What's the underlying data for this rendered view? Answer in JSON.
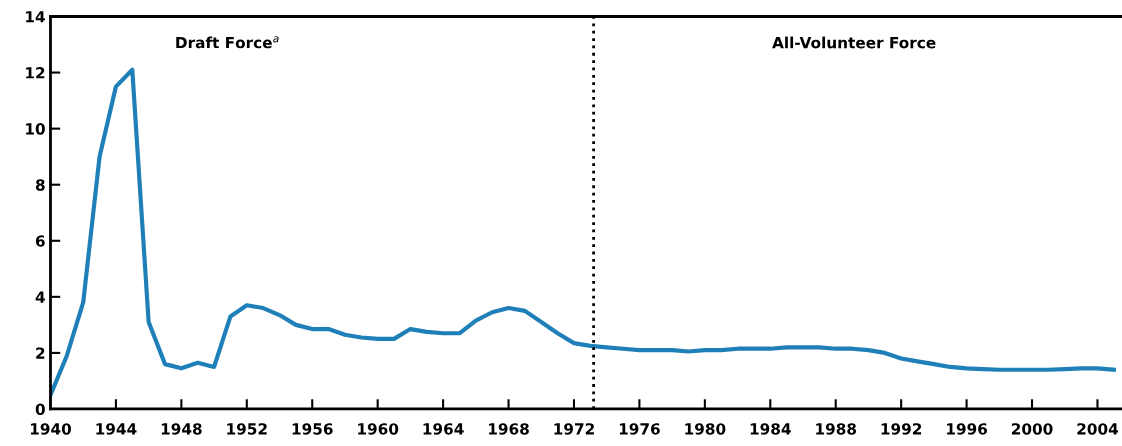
{
  "chart_data": {
    "type": "line",
    "x": [
      1940,
      1941,
      1942,
      1943,
      1944,
      1945,
      1946,
      1947,
      1948,
      1949,
      1950,
      1951,
      1952,
      1953,
      1954,
      1955,
      1956,
      1957,
      1958,
      1959,
      1960,
      1961,
      1962,
      1963,
      1964,
      1965,
      1966,
      1967,
      1968,
      1969,
      1970,
      1971,
      1972,
      1973,
      1974,
      1975,
      1976,
      1977,
      1978,
      1979,
      1980,
      1981,
      1982,
      1983,
      1984,
      1985,
      1986,
      1987,
      1988,
      1989,
      1990,
      1991,
      1992,
      1993,
      1994,
      1995,
      1996,
      1997,
      1998,
      1999,
      2000,
      2001,
      2002,
      2003,
      2004,
      2005
    ],
    "series": [
      {
        "color": "#1f7fb8",
        "values": [
          0.5,
          1.9,
          3.8,
          9.0,
          11.5,
          12.1,
          3.1,
          1.6,
          1.45,
          1.65,
          1.5,
          3.3,
          3.7,
          3.6,
          3.35,
          3.0,
          2.85,
          2.85,
          2.65,
          2.55,
          2.5,
          2.5,
          2.85,
          2.75,
          2.7,
          2.7,
          3.15,
          3.45,
          3.6,
          3.5,
          3.1,
          2.7,
          2.35,
          2.25,
          2.2,
          2.15,
          2.1,
          2.1,
          2.1,
          2.05,
          2.1,
          2.1,
          2.15,
          2.15,
          2.15,
          2.2,
          2.2,
          2.2,
          2.15,
          2.15,
          2.1,
          2.0,
          1.8,
          1.7,
          1.6,
          1.5,
          1.45,
          1.42,
          1.4,
          1.4,
          1.4,
          1.4,
          1.42,
          1.45,
          1.45,
          1.4
        ]
      }
    ],
    "xlim": [
      1940,
      2005.5
    ],
    "ylim": [
      0,
      14
    ],
    "xticks": [
      1940,
      1944,
      1948,
      1952,
      1956,
      1960,
      1964,
      1968,
      1972,
      1976,
      1980,
      1984,
      1988,
      1992,
      1996,
      2000,
      2004
    ],
    "yticks": [
      0,
      2,
      4,
      6,
      8,
      10,
      12,
      14
    ],
    "ref_lines": [
      {
        "axis": "x",
        "value": 1973.2,
        "color": "#000000",
        "line_style": "dotted"
      }
    ],
    "annotations": [
      "Draft Force$^{a}$",
      "All-Volunteer Force"
    ],
    "grid": false,
    "legend": false,
    "marker": "none",
    "line_style": "solid"
  }
}
